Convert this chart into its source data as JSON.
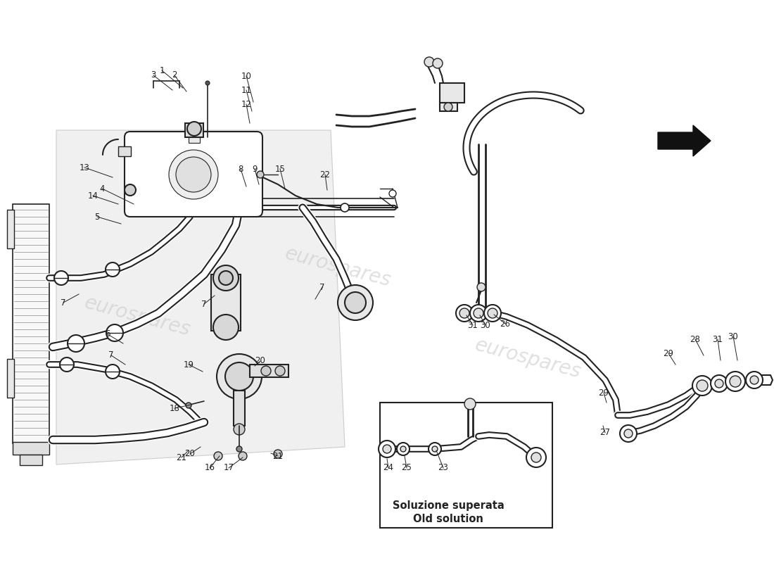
{
  "background_color": "#ffffff",
  "line_color": "#222222",
  "light_gray": "#cccccc",
  "med_gray": "#aaaaaa",
  "dark_fill": "#333333",
  "watermark_color": "#cccccc",
  "watermark_text": "eurospares",
  "fig_width": 11.0,
  "fig_height": 8.0,
  "dpi": 100,
  "box_label": "Soluzione superata\nOld solution"
}
